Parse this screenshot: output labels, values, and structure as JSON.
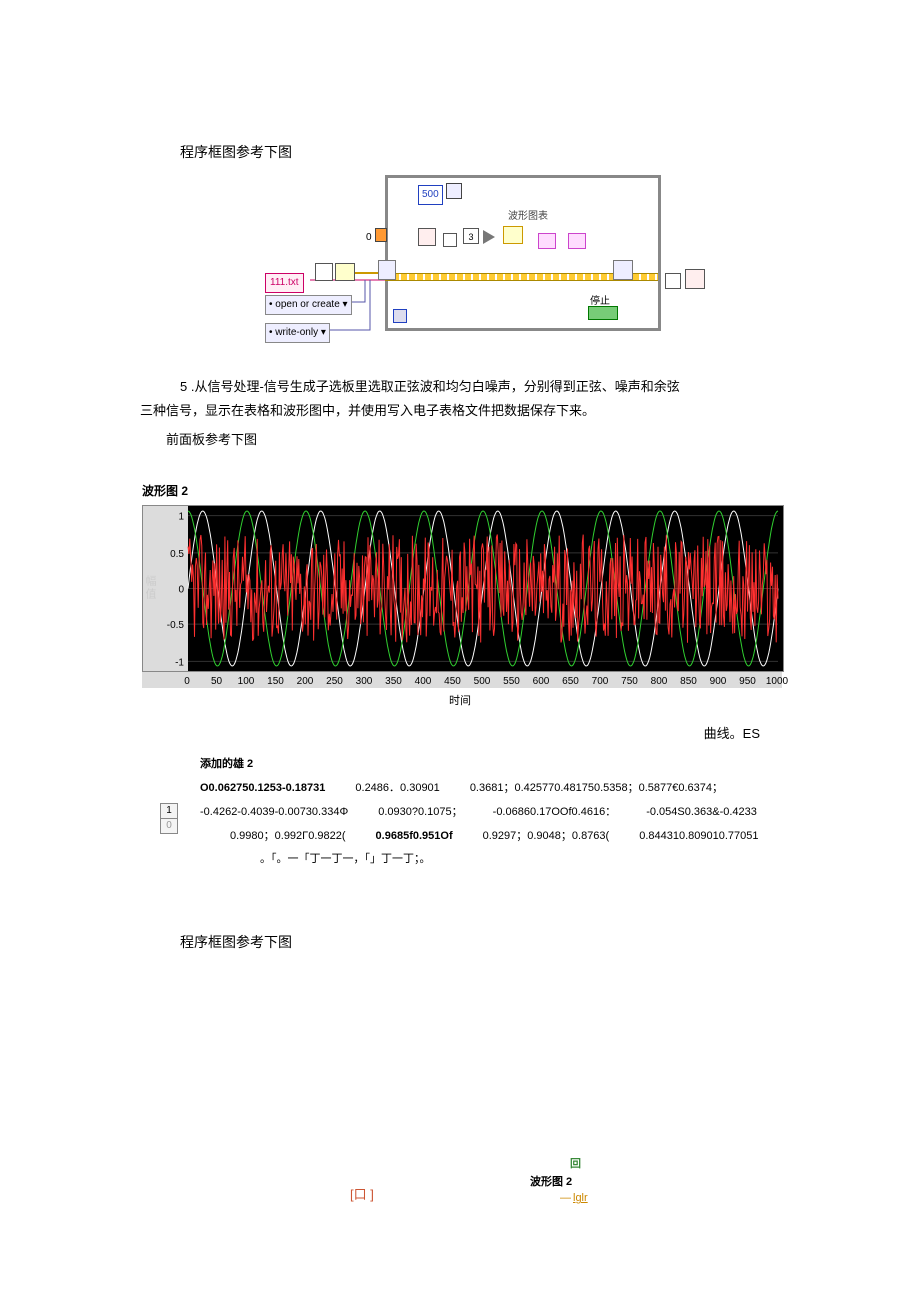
{
  "section1_title": "程序框图参考下图",
  "diagram1": {
    "value500": "500",
    "waveform_label": "波形图表",
    "three_value": "3",
    "file_label": "111.txt",
    "open_label": "• open or create ▾",
    "write_label": "• write-only ▾",
    "stop_label": "停止",
    "zero_label": "0"
  },
  "para_num": "5",
  "para_text1": " .从信号处理-信号生成子选板里选取正弦波和均匀白噪声，分别得到正弦、噪声和余弦",
  "para_text2": "三种信号，显示在表格和波形图中，并使用写入电子表格文件把数据保存下来。",
  "para_text3": "前面板参考下图",
  "waveform": {
    "title": "波形图 2",
    "xlabel": "时间",
    "ylabel_text": "幅值",
    "yticks": [
      {
        "v": "1",
        "pct": 3
      },
      {
        "v": "0.5",
        "pct": 27
      },
      {
        "v": "0",
        "pct": 50
      },
      {
        "v": "-0.5",
        "pct": 73
      },
      {
        "v": "-1",
        "pct": 97
      }
    ],
    "xticks": [
      "0",
      "50",
      "100",
      "150",
      "200",
      "250",
      "300",
      "350",
      "400",
      "450",
      "500",
      "550",
      "600",
      "650",
      "700",
      "750",
      "800",
      "850",
      "900",
      "950",
      "1000"
    ],
    "grid_color": "#333333",
    "bg": "#000000",
    "series": [
      {
        "color": "#ffffff",
        "type": "sine",
        "freq_cycles": 10,
        "amp": 1.0,
        "phase": 0
      },
      {
        "color": "#30d030",
        "type": "sine",
        "freq_cycles": 10,
        "amp": 1.0,
        "phase": 1.5708
      },
      {
        "color": "#ff3030",
        "type": "noise",
        "amp": 0.7
      }
    ],
    "right_text": "曲线。ES"
  },
  "table": {
    "title": "添加的雄 2",
    "idx_top": "1",
    "idx_bot": "0",
    "rows": [
      [
        "O0.062750.1253-0.18731",
        "0.2486．0.30901",
        "0.3681；0.425770.481750.5358；0.5877€0.6374；"
      ],
      [
        "-0.4262-0.4039-0.00730.334Φ",
        "0.0930?0.1075；",
        "-0.06860.17OOf0.4616：",
        "-0.054S0.363&-0.4233"
      ],
      [
        "0.9980；0.992Γ0.9822(",
        "0.9685f0.951Of",
        "0.9297；0.9048；0.8763(",
        "0.844310.809010.77051"
      ],
      [
        "。「。一「丁一丁一，「」丁一丁；。"
      ]
    ]
  },
  "section2_title": "程序框图参考下图",
  "diagram2": {
    "green": "回",
    "label": "波形图 2",
    "lglr": "lglr",
    "box": "[口 ]"
  }
}
